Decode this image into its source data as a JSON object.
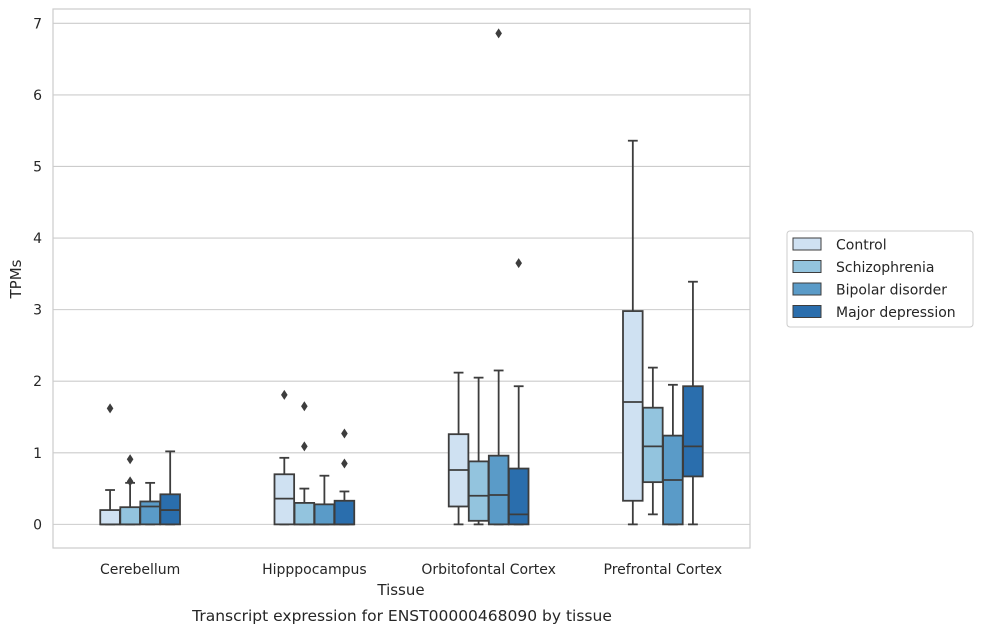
{
  "caption": "Transcript expression for ENST00000468090 by tissue",
  "chart_data": {
    "type": "box",
    "xlabel": "Tissue",
    "ylabel": "TPMs",
    "ylim": [
      -0.33,
      7.2
    ],
    "yticks": [
      0,
      1,
      2,
      3,
      4,
      5,
      6,
      7
    ],
    "grid": "horizontal",
    "legend_position": "right",
    "categories": [
      "Cerebellum",
      "Hipppocampus",
      "Orbitofontal Cortex",
      "Prefrontal Cortex"
    ],
    "series": [
      {
        "name": "Control",
        "color": "#cfe1f2",
        "boxes": [
          {
            "min": 0.0,
            "q1": 0.0,
            "median": 0.0,
            "q3": 0.2,
            "max": 0.48,
            "outliers": [
              1.62
            ]
          },
          {
            "min": 0.0,
            "q1": 0.0,
            "median": 0.36,
            "q3": 0.7,
            "max": 0.93,
            "outliers": [
              1.81
            ]
          },
          {
            "min": 0.0,
            "q1": 0.25,
            "median": 0.76,
            "q3": 1.26,
            "max": 2.12,
            "outliers": []
          },
          {
            "min": 0.0,
            "q1": 0.33,
            "median": 1.71,
            "q3": 2.98,
            "max": 5.36,
            "outliers": []
          }
        ]
      },
      {
        "name": "Schizophrenia",
        "color": "#93c4de",
        "boxes": [
          {
            "min": 0.0,
            "q1": 0.0,
            "median": 0.0,
            "q3": 0.24,
            "max": 0.58,
            "outliers": [
              0.91,
              0.6
            ]
          },
          {
            "min": 0.0,
            "q1": 0.0,
            "median": 0.0,
            "q3": 0.3,
            "max": 0.5,
            "outliers": [
              1.65,
              1.09
            ]
          },
          {
            "min": 0.0,
            "q1": 0.05,
            "median": 0.4,
            "q3": 0.88,
            "max": 2.05,
            "outliers": []
          },
          {
            "min": 0.14,
            "q1": 0.59,
            "median": 1.09,
            "q3": 1.63,
            "max": 2.19,
            "outliers": []
          }
        ]
      },
      {
        "name": "Bipolar disorder",
        "color": "#5a9bc8",
        "boxes": [
          {
            "min": 0.0,
            "q1": 0.0,
            "median": 0.25,
            "q3": 0.32,
            "max": 0.58,
            "outliers": []
          },
          {
            "min": 0.0,
            "q1": 0.0,
            "median": 0.0,
            "q3": 0.28,
            "max": 0.68,
            "outliers": []
          },
          {
            "min": 0.0,
            "q1": 0.0,
            "median": 0.41,
            "q3": 0.96,
            "max": 2.15,
            "outliers": [
              6.86
            ]
          },
          {
            "min": 0.0,
            "q1": 0.0,
            "median": 0.62,
            "q3": 1.24,
            "max": 1.95,
            "outliers": []
          }
        ]
      },
      {
        "name": "Major depression",
        "color": "#2a6ead",
        "boxes": [
          {
            "min": 0.0,
            "q1": 0.0,
            "median": 0.2,
            "q3": 0.42,
            "max": 1.02,
            "outliers": []
          },
          {
            "min": 0.0,
            "q1": 0.0,
            "median": 0.0,
            "q3": 0.33,
            "max": 0.46,
            "outliers": [
              1.27,
              0.85
            ]
          },
          {
            "min": 0.0,
            "q1": 0.0,
            "median": 0.14,
            "q3": 0.78,
            "max": 1.93,
            "outliers": [
              3.65
            ]
          },
          {
            "min": 0.0,
            "q1": 0.67,
            "median": 1.09,
            "q3": 1.93,
            "max": 3.39,
            "outliers": []
          }
        ]
      }
    ]
  }
}
